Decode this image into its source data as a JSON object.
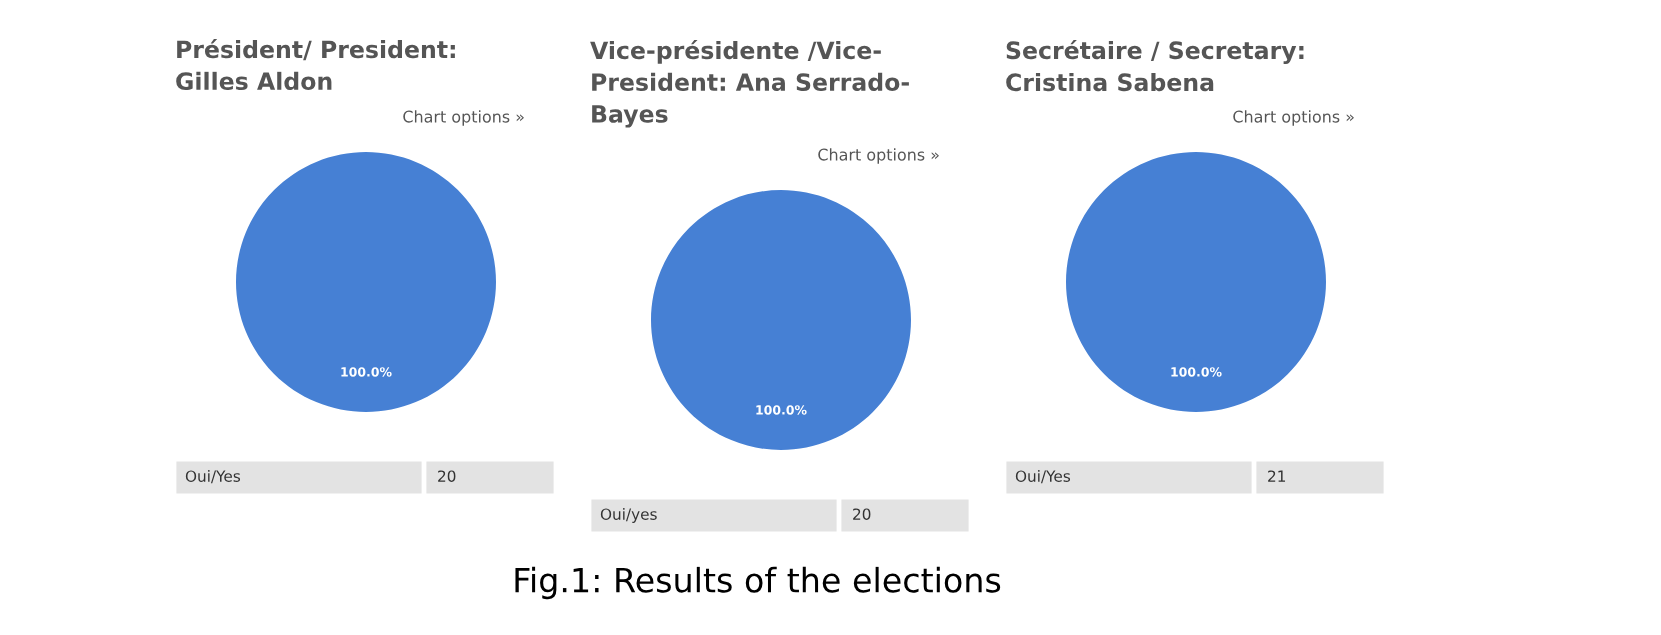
{
  "chart_data": [
    {
      "type": "pie",
      "title": "Président/ President:\nGilles Aldon",
      "annotations": [
        "Chart options »",
        "20"
      ],
      "categories": [
        "Oui/Yes"
      ],
      "values": [
        100
      ],
      "colors": [
        "#4680d4"
      ],
      "value_labels": [
        "100.0%"
      ]
    },
    {
      "type": "pie",
      "title": "Vice-présidente /Vice-\nPresident: Ana Serrado-\nBayes",
      "annotations": [
        "Chart options »",
        "20",
        "Fig.1: Results of the elections"
      ],
      "categories": [
        "Oui/yes"
      ],
      "values": [
        100
      ],
      "colors": [
        "#4680d4"
      ],
      "value_labels": [
        "100.0%"
      ]
    },
    {
      "type": "pie",
      "title": "Secrétaire / Secretary:\nCristina Sabena",
      "annotations": [
        "Chart options »",
        "21"
      ],
      "categories": [
        "Oui/Yes"
      ],
      "values": [
        100
      ],
      "colors": [
        "#4680d4"
      ],
      "value_labels": [
        "100.0%"
      ]
    }
  ]
}
